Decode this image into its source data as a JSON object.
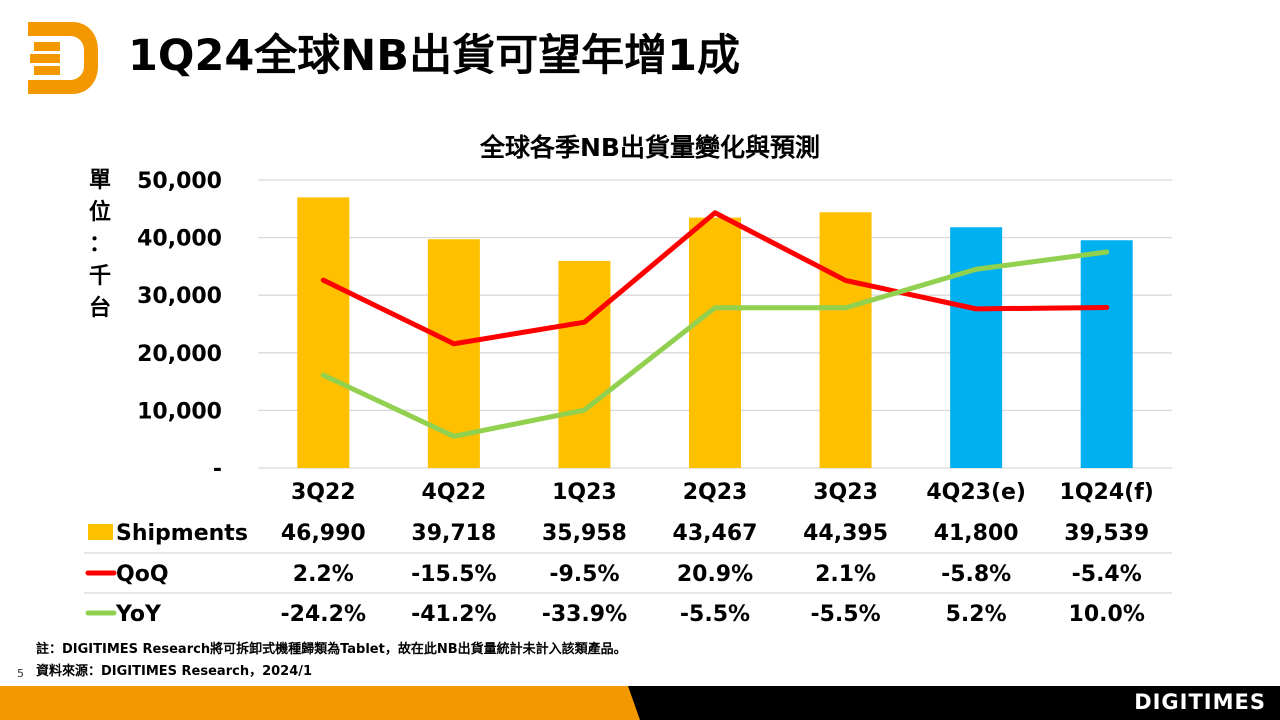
{
  "slide": {
    "title": "1Q24全球NB出貨可望年增1成",
    "page_number": "5",
    "brand": "DIGITIMES",
    "note": "註：DIGITIMES Research將可拆卸式機種歸類為Tablet，故在此NB出貨量統計未計入該類產品。",
    "source": "資料來源：DIGITIMES Research，2024/1",
    "colors": {
      "orange": "#f39800",
      "black": "#000000"
    }
  },
  "chart_data": {
    "type": "bar",
    "title": "全球各季NB出貨量變化與預測",
    "ylabel": "單位：千台",
    "ylabel_chars": [
      "單",
      "位",
      "：",
      "千",
      "台"
    ],
    "ylim": [
      0,
      50000
    ],
    "y2lim": [
      -50,
      30
    ],
    "yticks": [
      0,
      10000,
      20000,
      30000,
      40000,
      50000
    ],
    "ytick_labels": [
      "-",
      "10,000",
      "20,000",
      "30,000",
      "40,000",
      "50,000"
    ],
    "grid": true,
    "categories": [
      "3Q22",
      "4Q22",
      "1Q23",
      "2Q23",
      "3Q23",
      "4Q23(e)",
      "1Q24(f)"
    ],
    "series": [
      {
        "name": "Shipments",
        "type": "bar",
        "axis": "primary",
        "values": [
          46990,
          39718,
          35958,
          43467,
          44395,
          41800,
          39539
        ],
        "labels": [
          "46,990",
          "39,718",
          "35,958",
          "43,467",
          "44,395",
          "41,800",
          "39,539"
        ],
        "color": "#ffc000",
        "forecast_color": "#00b0f0",
        "forecast_flags": [
          false,
          false,
          false,
          false,
          false,
          true,
          true
        ]
      },
      {
        "name": "QoQ",
        "type": "line",
        "axis": "secondary",
        "values": [
          2.2,
          -15.5,
          -9.5,
          20.9,
          2.1,
          -5.8,
          -5.4
        ],
        "labels": [
          "2.2%",
          "-15.5%",
          "-9.5%",
          "20.9%",
          "2.1%",
          "-5.8%",
          "-5.4%"
        ],
        "color": "#ff0000"
      },
      {
        "name": "YoY",
        "type": "line",
        "axis": "secondary",
        "values": [
          -24.2,
          -41.2,
          -33.9,
          -5.5,
          -5.5,
          5.2,
          10.0
        ],
        "labels": [
          "-24.2%",
          "-41.2%",
          "-33.9%",
          "-5.5%",
          "-5.5%",
          "5.2%",
          "10.0%"
        ],
        "color": "#92d050"
      }
    ],
    "legend": "data-table-below"
  }
}
